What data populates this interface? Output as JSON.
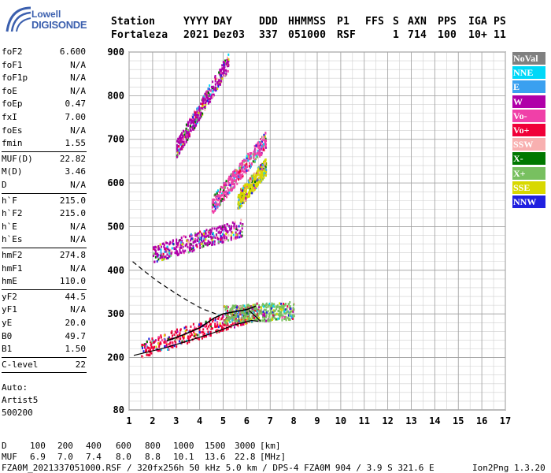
{
  "logo": {
    "line1": "Lowell",
    "line2": "DIGISONDE"
  },
  "header": {
    "labels": [
      "Station",
      "YYYY",
      "DAY",
      "DDD",
      "HHMMSS",
      "P1",
      "FFS",
      "S",
      "AXN",
      "PPS",
      "IGA",
      "PS"
    ],
    "values": [
      "Fortaleza",
      "2021",
      "Dez03",
      "337",
      "051000",
      "RSF",
      "",
      "1",
      "714",
      "100",
      "10+",
      "11"
    ]
  },
  "params": [
    {
      "k": "foF2",
      "v": "6.600"
    },
    {
      "k": "foF1",
      "v": "N/A"
    },
    {
      "k": "foF1p",
      "v": "N/A"
    },
    {
      "k": "foE",
      "v": "N/A"
    },
    {
      "k": "foEp",
      "v": "0.47"
    },
    {
      "k": "fxI",
      "v": "7.00"
    },
    {
      "k": "foEs",
      "v": "N/A"
    },
    {
      "k": "fmin",
      "v": "1.55"
    },
    {
      "k": "MUF(D)",
      "v": "22.82"
    },
    {
      "k": "M(D)",
      "v": "3.46"
    },
    {
      "k": "D",
      "v": "N/A"
    },
    {
      "k": "h`F",
      "v": "215.0"
    },
    {
      "k": "h`F2",
      "v": "215.0"
    },
    {
      "k": "h`E",
      "v": "N/A"
    },
    {
      "k": "h`Es",
      "v": "N/A"
    },
    {
      "k": "hmF2",
      "v": "274.8"
    },
    {
      "k": "hmF1",
      "v": "N/A"
    },
    {
      "k": "hmE",
      "v": "110.0"
    },
    {
      "k": "yF2",
      "v": "44.5"
    },
    {
      "k": "yF1",
      "v": "N/A"
    },
    {
      "k": "yE",
      "v": "20.0"
    },
    {
      "k": "B0",
      "v": "49.7"
    },
    {
      "k": "B1",
      "v": "1.50"
    },
    {
      "k": "C-level",
      "v": "22"
    }
  ],
  "auto": {
    "line1": "Auto:",
    "line2": "Artist5",
    "line3": "500200"
  },
  "legend": [
    {
      "label": "NoVal",
      "color": "#808080"
    },
    {
      "label": "NNE",
      "color": "#00d8f8"
    },
    {
      "label": "E",
      "color": "#3aa0f0"
    },
    {
      "label": "W",
      "color": "#b000a8"
    },
    {
      "label": "Vo-",
      "color": "#f040a8"
    },
    {
      "label": "Vo+",
      "color": "#f00038"
    },
    {
      "label": "SSW",
      "color": "#f8b0b0"
    },
    {
      "label": "X-",
      "color": "#007800"
    },
    {
      "label": "X+",
      "color": "#78c060"
    },
    {
      "label": "SSE",
      "color": "#d8d800"
    },
    {
      "label": "NNW",
      "color": "#2020e0"
    }
  ],
  "footer": {
    "d_label": "D",
    "d_values": [
      "100",
      "200",
      "400",
      "600",
      "800",
      "1000",
      "1500",
      "3000"
    ],
    "d_unit": "[km]",
    "muf_label": "MUF",
    "muf_values": [
      "6.9",
      "7.0",
      "7.4",
      "8.0",
      "8.8",
      "10.1",
      "13.6",
      "22.8"
    ],
    "muf_unit": "[MHz]",
    "info": "FZA0M_2021337051000.RSF / 320fx256h 50 kHz 5.0 km / DPS-4 FZA0M 904 / 3.9 S 321.6 E",
    "version": "Ion2Png 1.3.20"
  },
  "chart_data": {
    "type": "scatter",
    "xlabel": "",
    "ylabel": "",
    "xlim": [
      1,
      17
    ],
    "ylim": [
      80,
      900
    ],
    "xticks": [
      1,
      2,
      3,
      4,
      5,
      6,
      7,
      8,
      9,
      10,
      11,
      12,
      13,
      14,
      15,
      16,
      17
    ],
    "yticks": [
      80,
      200,
      300,
      400,
      500,
      600,
      700,
      800,
      900
    ],
    "grid": true,
    "legend_position": "right",
    "traces": {
      "profile_solid": [
        [
          1.2,
          205
        ],
        [
          2.5,
          222
        ],
        [
          3.5,
          238
        ],
        [
          4.5,
          255
        ],
        [
          5.5,
          275
        ],
        [
          6.2,
          285
        ],
        [
          6.5,
          283
        ]
      ],
      "profile_lower": [
        [
          6.6,
          283
        ],
        [
          6.1,
          308
        ]
      ],
      "ordinary_trace": [
        [
          2.6,
          238
        ],
        [
          3.3,
          252
        ],
        [
          4.0,
          268
        ],
        [
          4.6,
          290
        ],
        [
          5.0,
          300
        ],
        [
          5.5,
          305
        ],
        [
          6.0,
          310
        ],
        [
          6.4,
          318
        ]
      ],
      "profile_dashed": [
        [
          1.15,
          420
        ],
        [
          1.6,
          400
        ],
        [
          2.2,
          375
        ],
        [
          2.9,
          350
        ],
        [
          3.5,
          330
        ],
        [
          4.1,
          312
        ],
        [
          4.7,
          300
        ]
      ]
    },
    "echo_regions": [
      {
        "name": "F trace o",
        "fmin": 1.5,
        "fmax": 6.5,
        "h_start": 220,
        "h_end": 310,
        "color": "#f00038"
      },
      {
        "name": "F trace x",
        "fmin": 5.0,
        "fmax": 8.0,
        "h_start": 300,
        "h_end": 310,
        "color": "#78c060"
      },
      {
        "name": "2F band",
        "fmin": 2.0,
        "fmax": 5.8,
        "h_start": 440,
        "h_end": 500,
        "color": "#b000a8"
      },
      {
        "name": "2F spread",
        "fmin": 4.5,
        "fmax": 6.8,
        "h_start": 550,
        "h_end": 700,
        "color": "#f040a8"
      },
      {
        "name": "3F band",
        "fmin": 3.0,
        "fmax": 5.2,
        "h_start": 680,
        "h_end": 880,
        "color": "#b000a8"
      },
      {
        "name": "SSE patch",
        "fmin": 5.6,
        "fmax": 6.8,
        "h_start": 560,
        "h_end": 640,
        "color": "#d8d800"
      }
    ]
  }
}
